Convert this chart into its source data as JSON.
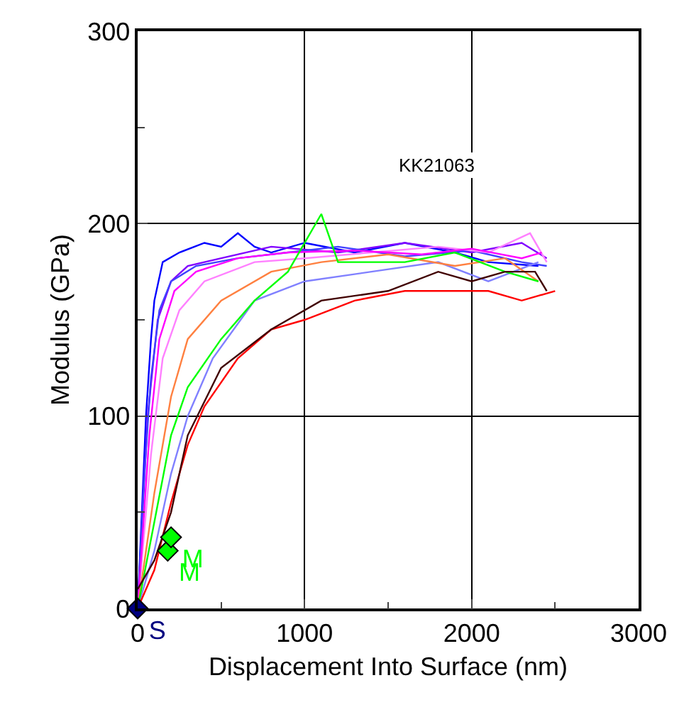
{
  "chart_data": {
    "type": "line",
    "xlabel": "Displacement Into Surface (nm)",
    "ylabel": "Modulus (GPa)",
    "xlim": [
      0,
      3000
    ],
    "ylim": [
      0,
      300
    ],
    "xticks": [
      0,
      1000,
      2000,
      3000
    ],
    "yticks": [
      0,
      100,
      200,
      300
    ],
    "grid": true,
    "marker": "none",
    "line_style": "solid",
    "annotations": [
      "KK21063"
    ],
    "series": [
      {
        "color": "#0000ff",
        "x": [
          0,
          30,
          50,
          80,
          100,
          150,
          250,
          400,
          500,
          600,
          700,
          800,
          1000,
          1300,
          1600,
          1900,
          2100,
          2400
        ],
        "values": [
          0,
          60,
          100,
          140,
          160,
          180,
          185,
          190,
          188,
          195,
          188,
          185,
          190,
          185,
          190,
          185,
          180,
          178
        ]
      },
      {
        "color": "#8000ff",
        "x": [
          0,
          60,
          120,
          200,
          300,
          500,
          800,
          1200,
          1600,
          2000,
          2300,
          2450
        ],
        "values": [
          0,
          100,
          150,
          170,
          178,
          182,
          188,
          185,
          190,
          185,
          190,
          182
        ]
      },
      {
        "color": "#4040ff",
        "x": [
          0,
          40,
          80,
          130,
          200,
          350,
          600,
          900,
          1200,
          1600,
          2000,
          2300,
          2450
        ],
        "values": [
          0,
          70,
          120,
          155,
          170,
          178,
          182,
          185,
          188,
          183,
          186,
          180,
          178
        ]
      },
      {
        "color": "#8080ff",
        "x": [
          0,
          100,
          200,
          300,
          450,
          700,
          1000,
          1400,
          1800,
          2100,
          2400
        ],
        "values": [
          0,
          30,
          70,
          100,
          130,
          160,
          170,
          175,
          180,
          170,
          180
        ]
      },
      {
        "color": "#ff80ff",
        "x": [
          0,
          80,
          150,
          250,
          400,
          700,
          1000,
          1400,
          1800,
          2100,
          2350,
          2450
        ],
        "values": [
          0,
          80,
          130,
          155,
          170,
          180,
          182,
          185,
          188,
          185,
          195,
          180
        ]
      },
      {
        "color": "#ff00ff",
        "x": [
          0,
          70,
          130,
          220,
          350,
          600,
          900,
          1300,
          1700,
          2000,
          2300,
          2420
        ],
        "values": [
          0,
          90,
          140,
          165,
          175,
          182,
          185,
          186,
          184,
          187,
          182,
          185
        ]
      },
      {
        "color": "#ff8040",
        "x": [
          0,
          100,
          200,
          300,
          500,
          800,
          1100,
          1500,
          1900,
          2200,
          2400
        ],
        "values": [
          0,
          60,
          110,
          140,
          160,
          175,
          180,
          184,
          178,
          182,
          170
        ]
      },
      {
        "color": "#00ff00",
        "x": [
          0,
          100,
          200,
          300,
          500,
          700,
          900,
          1100,
          1200,
          1600,
          1900,
          2200,
          2400
        ],
        "values": [
          0,
          45,
          90,
          115,
          140,
          160,
          175,
          205,
          180,
          180,
          185,
          175,
          170
        ]
      },
      {
        "color": "#ff0000",
        "x": [
          0,
          100,
          200,
          300,
          400,
          600,
          800,
          1000,
          1300,
          1600,
          1900,
          2100,
          2300,
          2500
        ],
        "values": [
          0,
          20,
          55,
          85,
          105,
          130,
          145,
          150,
          160,
          165,
          165,
          165,
          160,
          165
        ]
      },
      {
        "color": "#400000",
        "x": [
          0,
          100,
          200,
          300,
          500,
          800,
          1100,
          1500,
          1800,
          2000,
          2200,
          2380,
          2450
        ],
        "values": [
          10,
          25,
          50,
          90,
          125,
          145,
          160,
          165,
          175,
          170,
          175,
          175,
          165
        ]
      },
      {
        "type": "scatter",
        "marker": "diamond",
        "color": "#000080",
        "x": [
          0
        ],
        "values": [
          0
        ],
        "value_labels": [
          "S"
        ]
      },
      {
        "type": "scatter",
        "marker": "diamond",
        "color": "#00ff00",
        "x": [
          180,
          200
        ],
        "values": [
          30,
          37
        ],
        "value_labels": [
          "M",
          "M"
        ]
      }
    ]
  }
}
